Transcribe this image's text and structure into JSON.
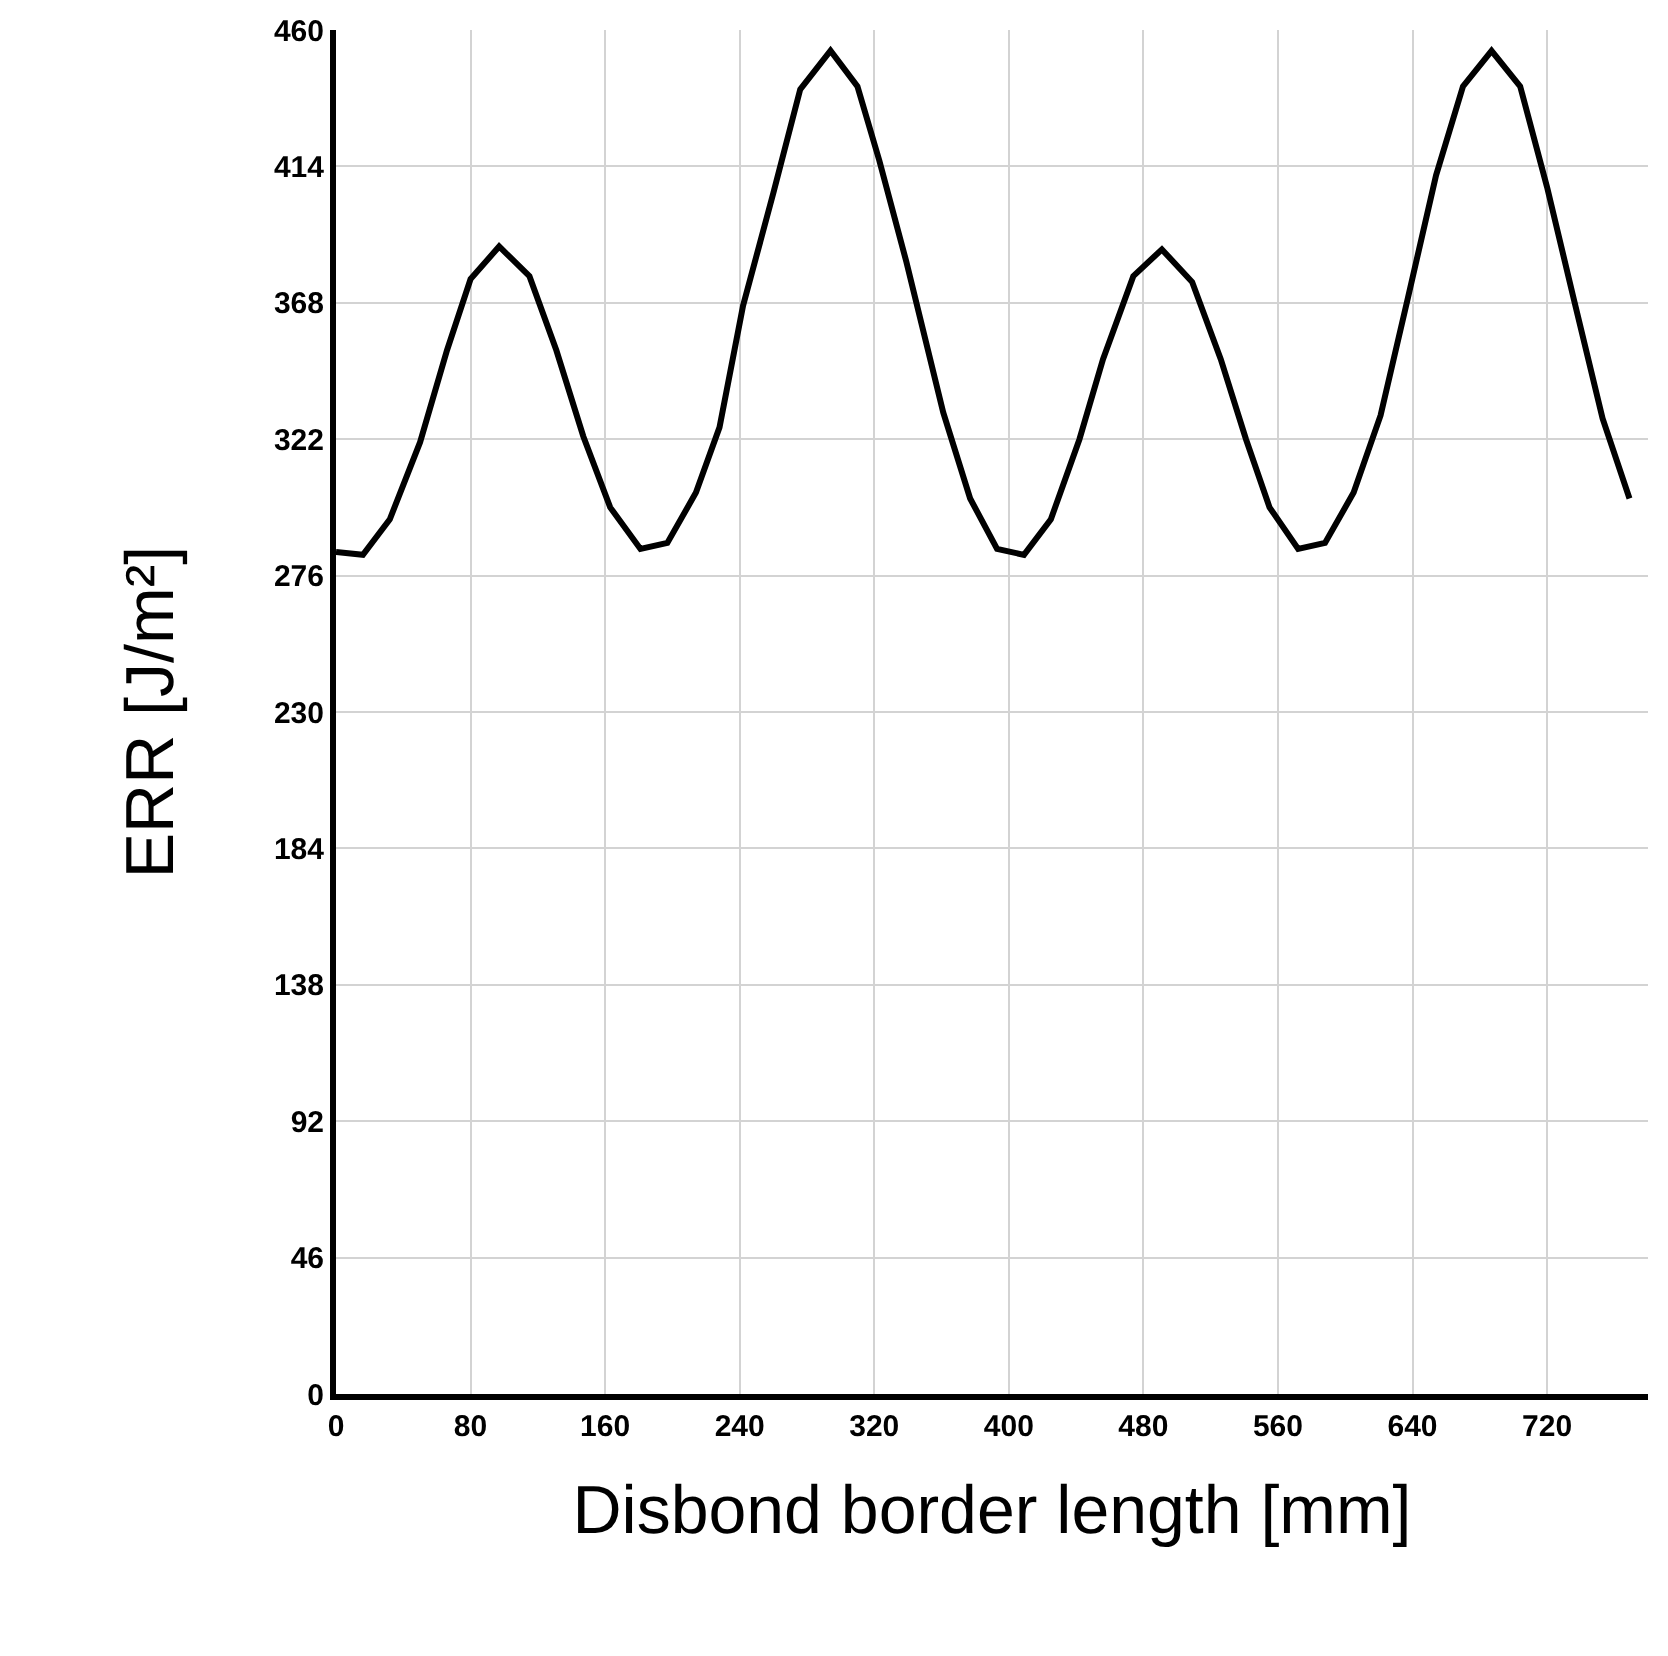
{
  "chart_data": {
    "type": "line",
    "xlabel": "Disbond border length [mm]",
    "ylabel": "ERR [J/m²]",
    "x": [
      0,
      16,
      32,
      50,
      66,
      80,
      97,
      115,
      131,
      147,
      163,
      181,
      197,
      214,
      228,
      242,
      260,
      276,
      294,
      310,
      323,
      339,
      361,
      377,
      393,
      409,
      425,
      442,
      456,
      474,
      491,
      509,
      526,
      541,
      555,
      572,
      588,
      605,
      621,
      637,
      654,
      670,
      687,
      704,
      720,
      736,
      753,
      769
    ],
    "series": [
      {
        "color": "#000000",
        "values": [
          284,
          283,
          295,
          321,
          352,
          376,
          387,
          377,
          352,
          323,
          299,
          285,
          287,
          304,
          326,
          367,
          405,
          440,
          453,
          441,
          416,
          382,
          331,
          302,
          285,
          283,
          295,
          322,
          349,
          377,
          386,
          375,
          349,
          322,
          299,
          285,
          287,
          304,
          330,
          369,
          411,
          441,
          453,
          441,
          407,
          369,
          329,
          302
        ]
      }
    ],
    "xlim": [
      0,
      780
    ],
    "xticks": [
      0,
      80,
      160,
      240,
      320,
      400,
      480,
      560,
      640,
      720
    ],
    "ylim": [
      0,
      460
    ],
    "yticks": [
      0,
      46,
      92,
      138,
      184,
      230,
      276,
      322,
      368,
      414,
      460
    ],
    "grid": true,
    "marker": "none",
    "line_style": "solid"
  }
}
